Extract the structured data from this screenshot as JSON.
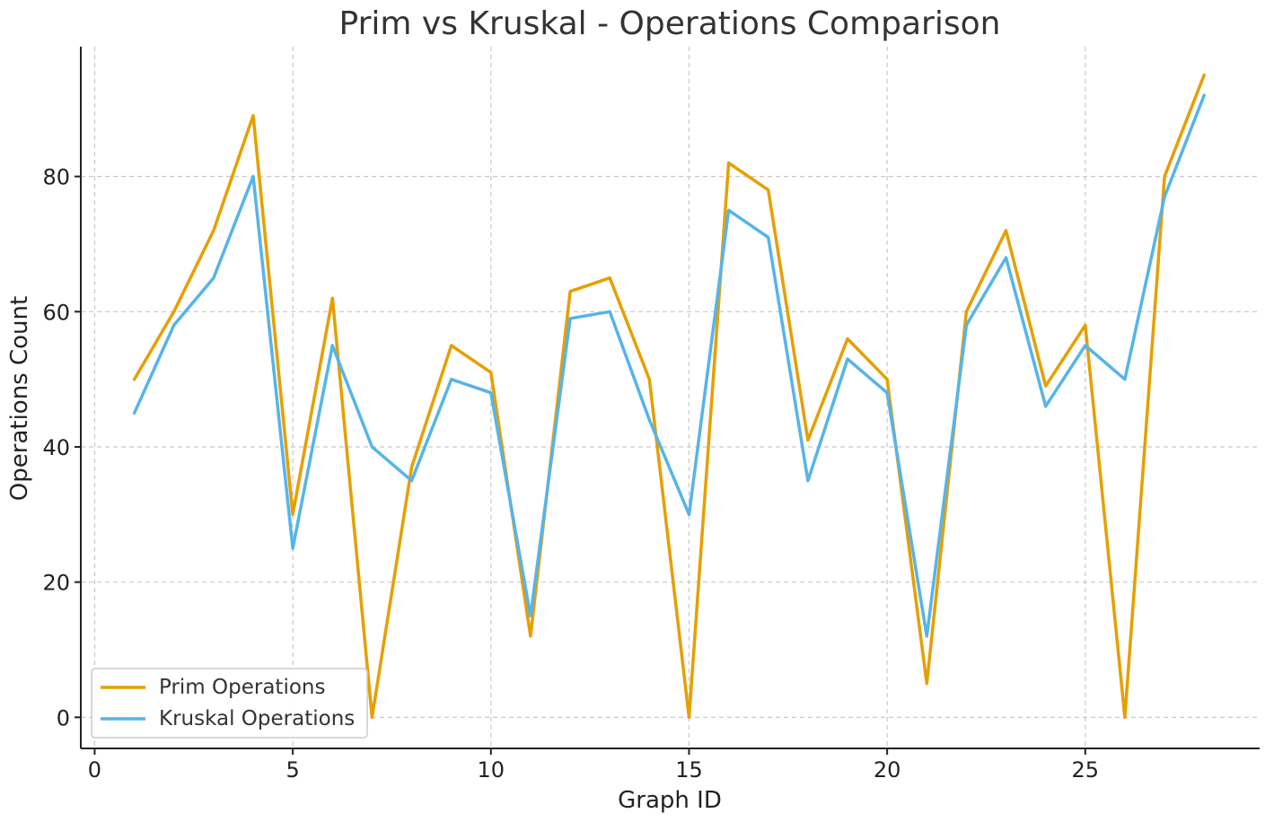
{
  "chart_data": {
    "type": "line",
    "title": "Prim vs Kruskal - Operations Comparison",
    "xlabel": "Graph ID",
    "ylabel": "Operations Count",
    "x": [
      1,
      2,
      3,
      4,
      5,
      6,
      7,
      8,
      9,
      10,
      11,
      12,
      13,
      14,
      15,
      16,
      17,
      18,
      19,
      20,
      21,
      22,
      23,
      24,
      25,
      26,
      27,
      28
    ],
    "series": [
      {
        "name": "Prim Operations",
        "color": "#E69F00",
        "values": [
          50,
          60,
          72,
          89,
          30,
          62,
          0,
          37,
          55,
          51,
          12,
          63,
          65,
          50,
          0,
          82,
          78,
          41,
          56,
          50,
          5,
          60,
          72,
          49,
          58,
          0,
          80,
          95
        ]
      },
      {
        "name": "Kruskal Operations",
        "color": "#56B4E9",
        "values": [
          45,
          58,
          65,
          80,
          25,
          55,
          40,
          35,
          50,
          48,
          15,
          59,
          60,
          44,
          30,
          75,
          71,
          35,
          53,
          48,
          12,
          58,
          68,
          46,
          55,
          50,
          77,
          92
        ]
      }
    ],
    "xlim": [
      -0.35,
      29.4
    ],
    "ylim": [
      -4.6,
      99.2
    ],
    "x_ticks": [
      0,
      5,
      10,
      15,
      20,
      25
    ],
    "y_ticks": [
      0,
      20,
      40,
      60,
      80
    ],
    "grid": true,
    "legend_position": "lower-left"
  }
}
